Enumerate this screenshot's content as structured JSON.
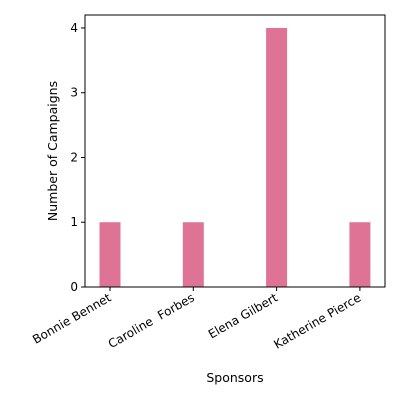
{
  "chart_data": {
    "type": "bar",
    "title": "",
    "categories": [
      "Bonnie Bennet",
      "Caroline  Forbes",
      "Elena Gilbert",
      "Katherine Pierce"
    ],
    "values": [
      1,
      1,
      4,
      1
    ],
    "xlabel": "Sponsors",
    "ylabel": "Number of Campaigns",
    "ylim": [
      0,
      4.2
    ],
    "yticks": [
      0,
      1,
      2,
      3,
      4
    ],
    "bar_color": "#de7396",
    "grid": false,
    "legend": "none"
  }
}
